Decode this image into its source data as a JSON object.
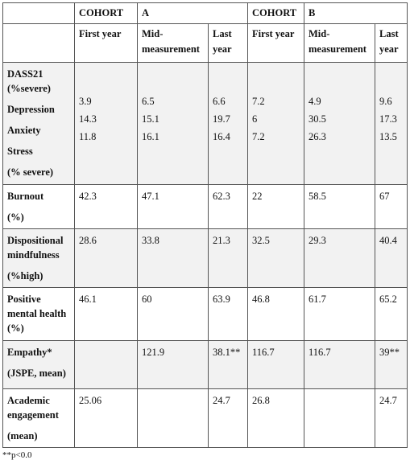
{
  "table": {
    "cohorts": [
      {
        "label": "COHORT",
        "name": "A"
      },
      {
        "label": "COHORT",
        "name": "B"
      }
    ],
    "columns": [
      "First year",
      "Mid-measurement",
      "Last year",
      "First year",
      "Mid-measurement",
      "Last year"
    ],
    "rows": [
      {
        "label": "DASS21 (%severe)",
        "note": "(% severe)",
        "sub": [
          {
            "label": "Depression",
            "values": [
              3.9,
              6.5,
              6.6,
              7.2,
              4.9,
              9.6
            ]
          },
          {
            "label": "Anxiety",
            "values": [
              14.3,
              15.1,
              19.7,
              6,
              30.5,
              17.3
            ]
          },
          {
            "label": "Stress",
            "values": [
              11.8,
              16.1,
              16.4,
              7.2,
              26.3,
              13.5
            ]
          }
        ]
      },
      {
        "label": "Burnout",
        "note": "(%)",
        "values": [
          42.3,
          47.1,
          62.3,
          22,
          58.5,
          67
        ]
      },
      {
        "label": "Dispositional mindfulness",
        "note": "(%high)",
        "values": [
          28.6,
          33.8,
          21.3,
          32.5,
          29.3,
          40.4
        ]
      },
      {
        "label": "Positive mental health (%)",
        "values": [
          46.1,
          60,
          63.9,
          46.8,
          61.7,
          65.2
        ]
      },
      {
        "label": "Empathy*",
        "note": "(JSPE, mean)",
        "values": [
          null,
          121.9,
          "38.1**",
          116.7,
          116.7,
          "39**"
        ]
      },
      {
        "label": "Academic engagement",
        "note": "(mean)",
        "values": [
          25.06,
          null,
          24.7,
          26.8,
          null,
          24.7
        ]
      }
    ],
    "footnote": "**p<0.0"
  }
}
